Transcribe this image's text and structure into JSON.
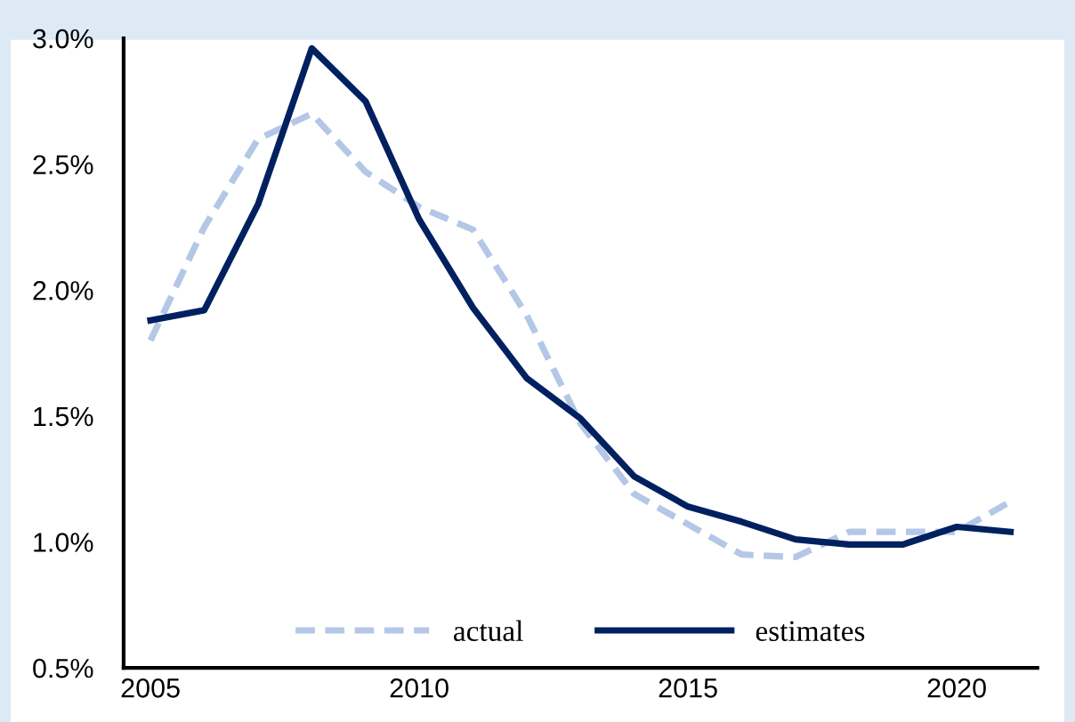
{
  "chart_data": {
    "type": "line",
    "x": [
      2005,
      2006,
      2007,
      2008,
      2009,
      2010,
      2011,
      2012,
      2013,
      2014,
      2015,
      2016,
      2017,
      2018,
      2019,
      2020,
      2021
    ],
    "series": [
      {
        "name": "actual",
        "color": "#b4c7e7",
        "line_style": "dashed",
        "values": [
          1.8,
          2.25,
          2.6,
          2.7,
          2.47,
          2.33,
          2.24,
          1.9,
          1.47,
          1.19,
          1.07,
          0.95,
          0.94,
          1.04,
          1.04,
          1.04,
          1.16
        ]
      },
      {
        "name": "estimates",
        "color": "#002060",
        "line_style": "solid",
        "values": [
          1.88,
          1.92,
          2.34,
          2.96,
          2.75,
          2.28,
          1.93,
          1.65,
          1.49,
          1.26,
          1.14,
          1.08,
          1.01,
          0.99,
          0.99,
          1.06,
          1.04
        ]
      }
    ],
    "xlim": [
      2004.5,
      2021.5
    ],
    "xticks": [
      2005,
      2010,
      2015,
      2020
    ],
    "ylim": [
      0.5,
      3.0
    ],
    "yticks": [
      {
        "value": 0.5,
        "label": "0.5%"
      },
      {
        "value": 1.0,
        "label": "1.0%"
      },
      {
        "value": 1.5,
        "label": "1.5%"
      },
      {
        "value": 2.0,
        "label": "2.0%"
      },
      {
        "value": 2.5,
        "label": "2.5%"
      },
      {
        "value": 3.0,
        "label": "3.0%"
      }
    ],
    "grid": false,
    "legend": "bottom",
    "marker": "none"
  }
}
